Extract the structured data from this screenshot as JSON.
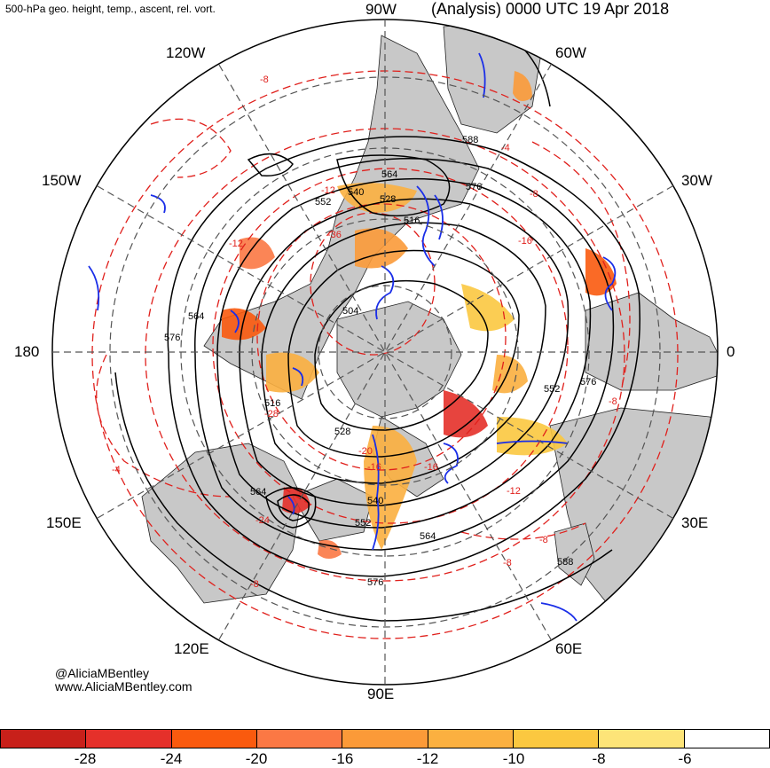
{
  "header": {
    "left_title": "500-hPa geo. height, temp., ascent, rel. vort.",
    "right_title": "(Analysis) 0000 UTC 19 Apr 2018"
  },
  "longitude_labels": {
    "w90": "90W",
    "w60": "60W",
    "w30": "30W",
    "lon0": "0",
    "e30": "30E",
    "e60": "60E",
    "e90": "90E",
    "e120": "120E",
    "e150": "150E",
    "lon180": "180",
    "w150": "150W",
    "w120": "120W"
  },
  "credits": {
    "handle": "@AliciaMBentley",
    "website": "www.AliciaMBentley.com"
  },
  "height_contour_labels": [
    "564",
    "540",
    "528",
    "552",
    "516",
    "588",
    "576",
    "564",
    "576",
    "504",
    "552",
    "576",
    "516",
    "528",
    "564",
    "540",
    "552",
    "564",
    "576",
    "588"
  ],
  "vort_contour_labels": [
    "-8",
    "-4",
    "-8",
    "-12",
    "-16",
    "-12",
    "-36",
    "-28",
    "-8",
    "-8",
    "-16",
    "-16",
    "-20",
    "-24",
    "-12",
    "-8",
    "-8",
    "-4"
  ],
  "colorbar": {
    "ticks": [
      "-28",
      "-24",
      "-20",
      "-16",
      "-12",
      "-10",
      "-8",
      "-6"
    ],
    "colors": [
      "#c8201a",
      "#e5302a",
      "#fa5a0e",
      "#fb7844",
      "#fb9a38",
      "#fbb040",
      "#fbc840",
      "#fde478",
      "#ffffff"
    ]
  },
  "colors": {
    "land": "#c8c8c8",
    "height_contour": "#000000",
    "temp_contour": "#e0201c",
    "ascent": "#1a2ee8",
    "grid": "#555555"
  }
}
